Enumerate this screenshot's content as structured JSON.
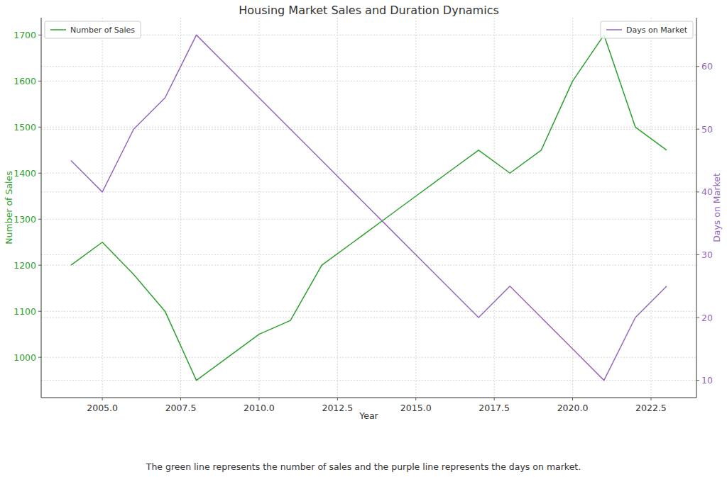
{
  "chart_data": {
    "type": "line",
    "title": "Housing Market Sales and Duration Dynamics",
    "xlabel": "Year",
    "ylabel": "Number of Sales",
    "y2label": "Days on Market",
    "caption": "The green line represents the number of sales and the purple line represents the days on market.",
    "x": [
      2004,
      2005,
      2006,
      2007,
      2008,
      2009,
      2010,
      2011,
      2012,
      2013,
      2014,
      2015,
      2016,
      2017,
      2018,
      2019,
      2020,
      2021,
      2022,
      2023
    ],
    "series": [
      {
        "name": "Number of Sales",
        "color": "#2ca02c",
        "values": [
          1200,
          1250,
          1180,
          1100,
          950,
          1000,
          1050,
          1080,
          1200,
          1250,
          1300,
          1350,
          1400,
          1450,
          1400,
          1450,
          1600,
          1700,
          1500,
          1450
        ]
      },
      {
        "name": "Days on Market",
        "color": "#9467bd",
        "axis": "y2",
        "values": [
          45,
          40,
          50,
          55,
          65,
          60,
          55,
          50,
          45,
          40,
          35,
          30,
          25,
          20,
          25,
          20,
          15,
          10,
          20,
          25
        ]
      }
    ],
    "xlim": [
      2003.05,
      2023.95
    ],
    "xticks": [
      {
        "value": 2005,
        "label": "2005.0"
      },
      2007.5,
      {
        "value": 2010,
        "label": "2010.0"
      },
      2012.5,
      {
        "value": 2015,
        "label": "2015.0"
      },
      2017.5,
      {
        "value": 2020,
        "label": "2020.0"
      },
      2022.5
    ],
    "ylim": [
      912.5,
      1737.5
    ],
    "yticks": [
      1000,
      1100,
      1200,
      1300,
      1400,
      1500,
      1600,
      1700
    ],
    "y2lim": [
      7.25,
      67.75
    ],
    "y2ticks": [
      10,
      20,
      30,
      40,
      50,
      60
    ],
    "grid": true,
    "legend": "upper left"
  }
}
